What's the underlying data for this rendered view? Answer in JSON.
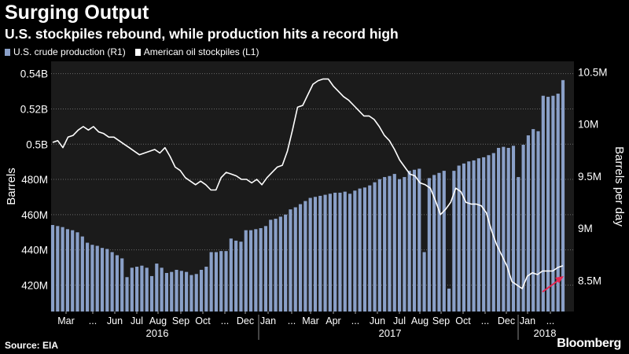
{
  "chart_data": {
    "type": "bar+line",
    "title": "Surging Output",
    "subtitle": "U.S. stockpiles rebound, while production hits a record high",
    "ylabel_left": "Barrels",
    "ylabel_right": "Barrels per day",
    "legend": [
      "U.S. crude production (R1)",
      "American oil stockpiles  (L1)"
    ],
    "left_ticks": [
      "420M",
      "440M",
      "460M",
      "480M",
      "0.5B",
      "0.52B",
      "0.54B"
    ],
    "left_tick_values": [
      420,
      440,
      460,
      480,
      500,
      520,
      540
    ],
    "ylim_left": [
      405,
      547
    ],
    "right_ticks": [
      "8.5M",
      "9M",
      "9.5M",
      "10M",
      "10.5M"
    ],
    "right_tick_values": [
      8.5,
      9,
      9.5,
      10,
      10.5
    ],
    "ylim_right": [
      8.2,
      10.6
    ],
    "x_month_labels": [
      "Mar",
      "...",
      "Jun",
      "Jul",
      "Aug",
      "Sep",
      "Oct",
      "...",
      "Dec",
      "Jan",
      "...",
      "Mar",
      "Apr",
      "...",
      "Jun",
      "Jul",
      "Aug",
      "Sep",
      "Oct",
      "...",
      "Dec",
      "Jan",
      "..."
    ],
    "x_year_labels": [
      "2016",
      "2017",
      "2018"
    ],
    "series": [
      {
        "name": "U.S. crude production (R1)",
        "color": "#8aa0c8",
        "values": [
          9.03,
          9.02,
          9.01,
          8.99,
          8.98,
          8.96,
          8.92,
          8.86,
          8.84,
          8.83,
          8.81,
          8.8,
          8.77,
          8.74,
          8.71,
          8.53,
          8.62,
          8.63,
          8.64,
          8.62,
          8.54,
          8.66,
          8.62,
          8.57,
          8.58,
          8.6,
          8.59,
          8.58,
          8.55,
          8.56,
          8.6,
          8.63,
          8.77,
          8.77,
          8.78,
          8.78,
          8.9,
          8.88,
          8.87,
          8.98,
          8.98,
          8.99,
          9.0,
          9.02,
          9.08,
          9.09,
          9.11,
          9.13,
          9.18,
          9.2,
          9.23,
          9.26,
          9.29,
          9.3,
          9.31,
          9.32,
          9.33,
          9.34,
          9.34,
          9.35,
          9.33,
          9.36,
          9.38,
          9.39,
          9.41,
          9.44,
          9.47,
          9.49,
          9.5,
          9.52,
          9.47,
          9.49,
          9.55,
          9.56,
          9.57,
          8.77,
          9.48,
          9.51,
          9.53,
          9.55,
          8.42,
          9.55,
          9.6,
          9.62,
          9.64,
          9.65,
          9.67,
          9.68,
          9.7,
          9.72,
          9.77,
          9.78,
          9.77,
          9.79,
          9.49,
          9.8,
          9.89,
          9.95,
          9.93,
          10.27,
          10.26,
          10.27,
          10.29,
          10.42
        ]
      },
      {
        "name": "American oil stockpiles  (L1)",
        "color": "#ffffff",
        "values": [
          501,
          502,
          498,
          504,
          505,
          508,
          510,
          508,
          510,
          507,
          506,
          504,
          504,
          502,
          500,
          498,
          496,
          494,
          495,
          496,
          497,
          495,
          498,
          493,
          487,
          485,
          481,
          479,
          477,
          479,
          477,
          474,
          474,
          481,
          484,
          483,
          482,
          480,
          480,
          478,
          480,
          477,
          481,
          484,
          487,
          488,
          496,
          508,
          521,
          522,
          528,
          534,
          536,
          537,
          537,
          533,
          530,
          527,
          525,
          522,
          519,
          516,
          516,
          514,
          510,
          505,
          502,
          497,
          491,
          487,
          483,
          482,
          478,
          477,
          475,
          468,
          460,
          463,
          467,
          475,
          473,
          467,
          466,
          466,
          465,
          461,
          451,
          443,
          437,
          431,
          422,
          420,
          418,
          425,
          427,
          426,
          428,
          428,
          428,
          430,
          431
        ]
      }
    ]
  },
  "source": "Source: EIA",
  "brand": "Bloomberg",
  "colors": {
    "background": "#000000",
    "plot_bg": "#1b1b1b",
    "bar": "#8aa0c8",
    "line": "#ffffff",
    "arrow": "#e8244f",
    "grid": "#6a6a6a"
  }
}
